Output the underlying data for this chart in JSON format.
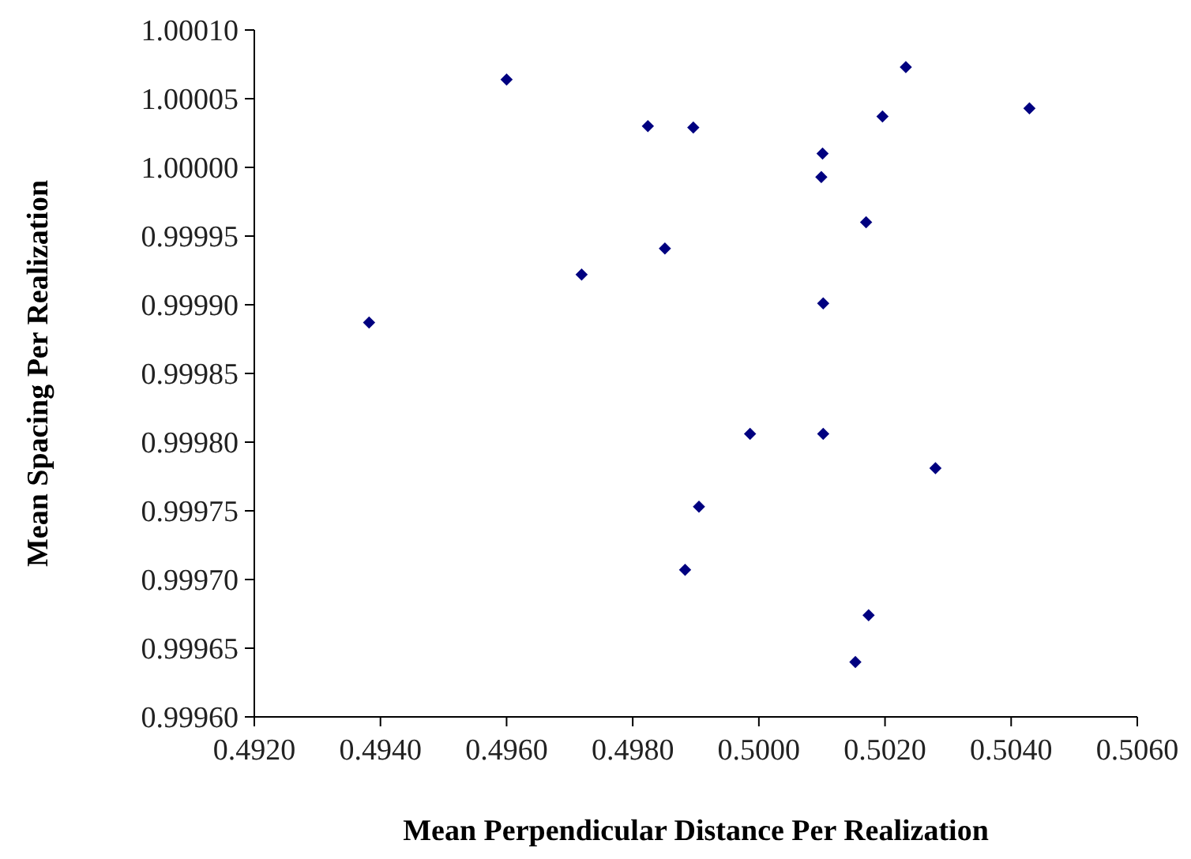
{
  "chart_data": {
    "type": "scatter",
    "xlabel": "Mean Perpendicular Distance Per Realization",
    "ylabel": "Mean Spacing Per Realization",
    "x": [
      0.49382,
      0.496,
      0.49824,
      0.49896,
      0.50233,
      0.50196,
      0.50429,
      0.50101,
      0.50099,
      0.5017,
      0.49851,
      0.49719,
      0.50102,
      0.49986,
      0.50102,
      0.5028,
      0.49905,
      0.49883,
      0.50174,
      0.50153
    ],
    "series": [
      {
        "color": "#000080",
        "values": [
          0.999887,
          1.000064,
          1.00003,
          1.000029,
          1.000073,
          1.000037,
          1.000043,
          1.00001,
          0.999993,
          0.99996,
          0.999941,
          0.999922,
          0.999901,
          0.999806,
          0.999806,
          0.999781,
          0.999753,
          0.999707,
          0.999674,
          0.99964
        ]
      }
    ],
    "xlim": [
      0.492,
      0.506
    ],
    "xticks": [
      {
        "value": 0.492,
        "label": "0.4920"
      },
      {
        "value": 0.494,
        "label": "0.4940"
      },
      {
        "value": 0.496,
        "label": "0.4960"
      },
      {
        "value": 0.498,
        "label": "0.4980"
      },
      {
        "value": 0.5,
        "label": "0.5000"
      },
      {
        "value": 0.502,
        "label": "0.5020"
      },
      {
        "value": 0.504,
        "label": "0.5040"
      },
      {
        "value": 0.506,
        "label": "0.5060"
      }
    ],
    "ylim": [
      0.9996,
      1.0001
    ],
    "yticks": [
      {
        "value": 0.9996,
        "label": "0.99960"
      },
      {
        "value": 0.99965,
        "label": "0.99965"
      },
      {
        "value": 0.9997,
        "label": "0.99970"
      },
      {
        "value": 0.99975,
        "label": "0.99975"
      },
      {
        "value": 0.9998,
        "label": "0.99980"
      },
      {
        "value": 0.99985,
        "label": "0.99985"
      },
      {
        "value": 0.9999,
        "label": "0.99990"
      },
      {
        "value": 0.99995,
        "label": "0.99995"
      },
      {
        "value": 1.0,
        "label": "1.00000"
      },
      {
        "value": 1.00005,
        "label": "1.00005"
      },
      {
        "value": 1.0001,
        "label": "1.00010"
      }
    ],
    "grid": false,
    "marker": "diamond"
  }
}
